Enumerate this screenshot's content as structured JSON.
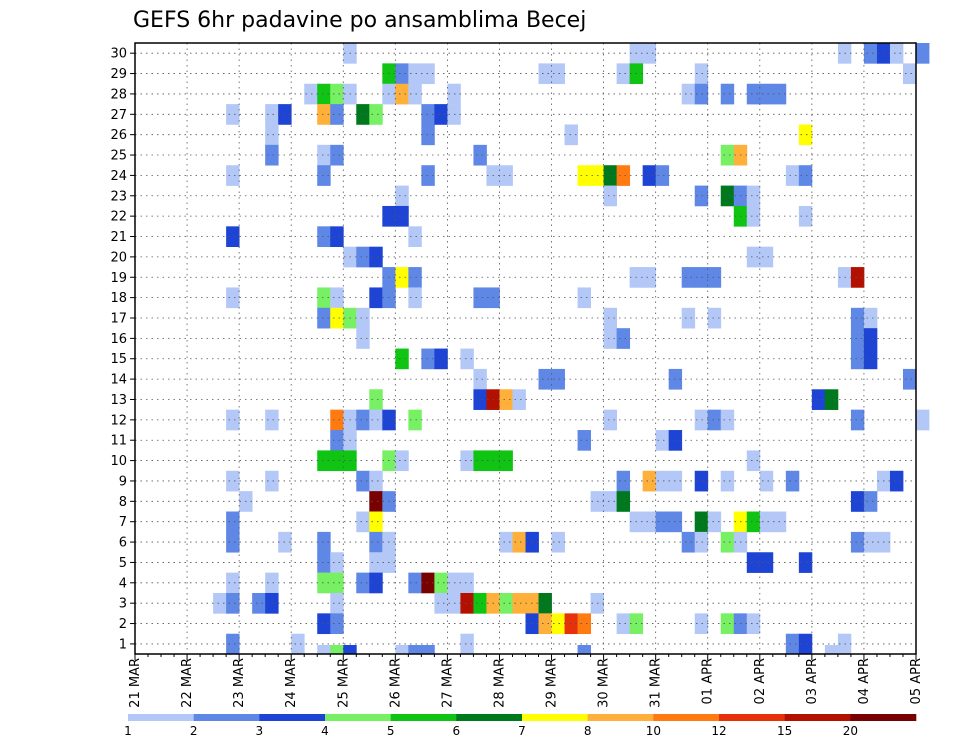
{
  "chart_data": {
    "type": "heatmap",
    "title": "GEFS 6hr padavine po ansamblima Becej",
    "y_categories": [
      "1",
      "2",
      "3",
      "4",
      "5",
      "6",
      "7",
      "8",
      "9",
      "10",
      "11",
      "12",
      "13",
      "14",
      "15",
      "16",
      "17",
      "18",
      "19",
      "20",
      "21",
      "22",
      "23",
      "24",
      "25",
      "26",
      "27",
      "28",
      "29",
      "30"
    ],
    "x_tick_labels": [
      "21 MAR",
      "22 MAR",
      "23 MAR",
      "24 MAR",
      "25 MAR",
      "26 MAR",
      "27 MAR",
      "28 MAR",
      "29 MAR",
      "30 MAR",
      "31 MAR",
      "01 APR",
      "02 APR",
      "03 APR",
      "04 APR",
      "05 APR"
    ],
    "x_steps_per_day": 4,
    "colorbar": {
      "tick_labels": [
        "1",
        "2",
        "3",
        "4",
        "5",
        "6",
        "7",
        "8",
        "10",
        "12",
        "15",
        "20"
      ],
      "bounds": [
        1,
        2,
        3,
        4,
        5,
        6,
        7,
        8,
        10,
        12,
        15,
        20,
        25
      ],
      "colors": [
        "#b4c8f8",
        "#5f87e6",
        "#1e44d6",
        "#78f064",
        "#10c414",
        "#00781e",
        "#ffff00",
        "#ffb03a",
        "#ff7a10",
        "#e6320a",
        "#b41000",
        "#780000"
      ]
    },
    "cells": [
      [
        30,
        16,
        1
      ],
      [
        30,
        38,
        1
      ],
      [
        30,
        39,
        1
      ],
      [
        30,
        54,
        1
      ],
      [
        30,
        56,
        2
      ],
      [
        30,
        57,
        3
      ],
      [
        30,
        58,
        1
      ],
      [
        30,
        60,
        2
      ],
      [
        29,
        19,
        5
      ],
      [
        29,
        20,
        2
      ],
      [
        29,
        21,
        1
      ],
      [
        29,
        22,
        1
      ],
      [
        29,
        31,
        1
      ],
      [
        29,
        32,
        1
      ],
      [
        29,
        37,
        1
      ],
      [
        29,
        38,
        5
      ],
      [
        29,
        43,
        1
      ],
      [
        29,
        59,
        1
      ],
      [
        28,
        13,
        1
      ],
      [
        28,
        14,
        5
      ],
      [
        28,
        15,
        4
      ],
      [
        28,
        16,
        1
      ],
      [
        28,
        19,
        1
      ],
      [
        28,
        20,
        8
      ],
      [
        28,
        21,
        1
      ],
      [
        28,
        24,
        1
      ],
      [
        28,
        42,
        1
      ],
      [
        28,
        43,
        2
      ],
      [
        28,
        45,
        2
      ],
      [
        28,
        47,
        2
      ],
      [
        28,
        48,
        2
      ],
      [
        28,
        49,
        2
      ],
      [
        27,
        7,
        1
      ],
      [
        27,
        10,
        1
      ],
      [
        27,
        11,
        3
      ],
      [
        27,
        14,
        8
      ],
      [
        27,
        15,
        2
      ],
      [
        27,
        17,
        6
      ],
      [
        27,
        18,
        4
      ],
      [
        27,
        22,
        2
      ],
      [
        27,
        23,
        3
      ],
      [
        27,
        24,
        1
      ],
      [
        26,
        10,
        1
      ],
      [
        26,
        22,
        2
      ],
      [
        26,
        33,
        1
      ],
      [
        26,
        51,
        7
      ],
      [
        25,
        10,
        2
      ],
      [
        25,
        14,
        1
      ],
      [
        25,
        15,
        2
      ],
      [
        25,
        26,
        2
      ],
      [
        25,
        45,
        4
      ],
      [
        25,
        46,
        8
      ],
      [
        24,
        7,
        1
      ],
      [
        24,
        14,
        2
      ],
      [
        24,
        22,
        2
      ],
      [
        24,
        27,
        1
      ],
      [
        24,
        28,
        1
      ],
      [
        24,
        34,
        7
      ],
      [
        24,
        35,
        7
      ],
      [
        24,
        36,
        6
      ],
      [
        24,
        37,
        9
      ],
      [
        24,
        39,
        3
      ],
      [
        24,
        40,
        2
      ],
      [
        24,
        50,
        1
      ],
      [
        24,
        51,
        2
      ],
      [
        23,
        20,
        1
      ],
      [
        23,
        36,
        1
      ],
      [
        23,
        43,
        2
      ],
      [
        23,
        45,
        6
      ],
      [
        23,
        46,
        2
      ],
      [
        23,
        47,
        1
      ],
      [
        22,
        19,
        3
      ],
      [
        22,
        20,
        3
      ],
      [
        22,
        46,
        5
      ],
      [
        22,
        47,
        1
      ],
      [
        22,
        51,
        1
      ],
      [
        21,
        7,
        3
      ],
      [
        21,
        14,
        2
      ],
      [
        21,
        15,
        3
      ],
      [
        21,
        21,
        1
      ],
      [
        20,
        16,
        1
      ],
      [
        20,
        17,
        2
      ],
      [
        20,
        18,
        3
      ],
      [
        20,
        47,
        1
      ],
      [
        20,
        48,
        1
      ],
      [
        19,
        19,
        2
      ],
      [
        19,
        20,
        7
      ],
      [
        19,
        21,
        2
      ],
      [
        19,
        38,
        1
      ],
      [
        19,
        39,
        1
      ],
      [
        19,
        42,
        2
      ],
      [
        19,
        43,
        2
      ],
      [
        19,
        44,
        2
      ],
      [
        19,
        54,
        1
      ],
      [
        19,
        55,
        11
      ],
      [
        18,
        7,
        1
      ],
      [
        18,
        14,
        4
      ],
      [
        18,
        15,
        1
      ],
      [
        18,
        18,
        3
      ],
      [
        18,
        19,
        2
      ],
      [
        18,
        21,
        1
      ],
      [
        18,
        26,
        2
      ],
      [
        18,
        27,
        2
      ],
      [
        18,
        34,
        1
      ],
      [
        17,
        14,
        2
      ],
      [
        17,
        15,
        7
      ],
      [
        17,
        16,
        4
      ],
      [
        17,
        17,
        1
      ],
      [
        17,
        36,
        1
      ],
      [
        17,
        42,
        1
      ],
      [
        17,
        44,
        1
      ],
      [
        17,
        55,
        2
      ],
      [
        17,
        56,
        1
      ],
      [
        16,
        17,
        1
      ],
      [
        16,
        36,
        1
      ],
      [
        16,
        37,
        2
      ],
      [
        16,
        55,
        2
      ],
      [
        16,
        56,
        3
      ],
      [
        15,
        20,
        5
      ],
      [
        15,
        22,
        2
      ],
      [
        15,
        23,
        3
      ],
      [
        15,
        25,
        1
      ],
      [
        15,
        55,
        2
      ],
      [
        15,
        56,
        3
      ],
      [
        14,
        26,
        1
      ],
      [
        14,
        31,
        2
      ],
      [
        14,
        32,
        2
      ],
      [
        14,
        41,
        2
      ],
      [
        14,
        59,
        2
      ],
      [
        13,
        18,
        4
      ],
      [
        13,
        26,
        3
      ],
      [
        13,
        27,
        11
      ],
      [
        13,
        28,
        8
      ],
      [
        13,
        29,
        1
      ],
      [
        13,
        52,
        3
      ],
      [
        13,
        53,
        6
      ],
      [
        12,
        7,
        1
      ],
      [
        12,
        10,
        1
      ],
      [
        12,
        15,
        9
      ],
      [
        12,
        16,
        1
      ],
      [
        12,
        17,
        2
      ],
      [
        12,
        18,
        1
      ],
      [
        12,
        19,
        3
      ],
      [
        12,
        21,
        4
      ],
      [
        12,
        36,
        1
      ],
      [
        12,
        43,
        1
      ],
      [
        12,
        44,
        2
      ],
      [
        12,
        45,
        1
      ],
      [
        12,
        55,
        2
      ],
      [
        12,
        60,
        1
      ],
      [
        11,
        15,
        2
      ],
      [
        11,
        16,
        1
      ],
      [
        11,
        34,
        2
      ],
      [
        11,
        40,
        1
      ],
      [
        11,
        41,
        3
      ],
      [
        10,
        14,
        5
      ],
      [
        10,
        15,
        5
      ],
      [
        10,
        16,
        5
      ],
      [
        10,
        19,
        4
      ],
      [
        10,
        20,
        1
      ],
      [
        10,
        25,
        1
      ],
      [
        10,
        26,
        5
      ],
      [
        10,
        27,
        5
      ],
      [
        10,
        28,
        5
      ],
      [
        10,
        47,
        1
      ],
      [
        9,
        7,
        1
      ],
      [
        9,
        10,
        1
      ],
      [
        9,
        17,
        2
      ],
      [
        9,
        18,
        1
      ],
      [
        9,
        37,
        2
      ],
      [
        9,
        39,
        8
      ],
      [
        9,
        40,
        1
      ],
      [
        9,
        41,
        1
      ],
      [
        9,
        43,
        3
      ],
      [
        9,
        45,
        1
      ],
      [
        9,
        48,
        1
      ],
      [
        9,
        50,
        2
      ],
      [
        9,
        57,
        1
      ],
      [
        9,
        58,
        3
      ],
      [
        8,
        8,
        1
      ],
      [
        8,
        18,
        12
      ],
      [
        8,
        19,
        2
      ],
      [
        8,
        35,
        1
      ],
      [
        8,
        36,
        1
      ],
      [
        8,
        37,
        6
      ],
      [
        8,
        55,
        3
      ],
      [
        8,
        56,
        2
      ],
      [
        7,
        7,
        2
      ],
      [
        7,
        17,
        1
      ],
      [
        7,
        18,
        7
      ],
      [
        7,
        38,
        1
      ],
      [
        7,
        39,
        1
      ],
      [
        7,
        40,
        2
      ],
      [
        7,
        41,
        2
      ],
      [
        7,
        43,
        6
      ],
      [
        7,
        44,
        1
      ],
      [
        7,
        46,
        7
      ],
      [
        7,
        47,
        5
      ],
      [
        7,
        48,
        1
      ],
      [
        7,
        49,
        1
      ],
      [
        6,
        7,
        2
      ],
      [
        6,
        11,
        1
      ],
      [
        6,
        14,
        2
      ],
      [
        6,
        18,
        2
      ],
      [
        6,
        19,
        1
      ],
      [
        6,
        28,
        1
      ],
      [
        6,
        29,
        8
      ],
      [
        6,
        30,
        3
      ],
      [
        6,
        32,
        1
      ],
      [
        6,
        42,
        2
      ],
      [
        6,
        43,
        1
      ],
      [
        6,
        45,
        4
      ],
      [
        6,
        46,
        1
      ],
      [
        6,
        55,
        2
      ],
      [
        6,
        56,
        1
      ],
      [
        6,
        57,
        1
      ],
      [
        5,
        14,
        2
      ],
      [
        5,
        15,
        1
      ],
      [
        5,
        18,
        1
      ],
      [
        5,
        19,
        1
      ],
      [
        5,
        47,
        3
      ],
      [
        5,
        48,
        3
      ],
      [
        5,
        51,
        3
      ],
      [
        4,
        7,
        1
      ],
      [
        4,
        10,
        1
      ],
      [
        4,
        14,
        4
      ],
      [
        4,
        15,
        4
      ],
      [
        4,
        17,
        2
      ],
      [
        4,
        18,
        3
      ],
      [
        4,
        21,
        2
      ],
      [
        4,
        22,
        12
      ],
      [
        4,
        23,
        4
      ],
      [
        4,
        24,
        1
      ],
      [
        4,
        25,
        1
      ],
      [
        3,
        6,
        1
      ],
      [
        3,
        7,
        2
      ],
      [
        3,
        9,
        2
      ],
      [
        3,
        10,
        3
      ],
      [
        3,
        15,
        1
      ],
      [
        3,
        23,
        1
      ],
      [
        3,
        24,
        1
      ],
      [
        3,
        25,
        11
      ],
      [
        3,
        26,
        5
      ],
      [
        3,
        27,
        8
      ],
      [
        3,
        28,
        4
      ],
      [
        3,
        29,
        8
      ],
      [
        3,
        30,
        8
      ],
      [
        3,
        31,
        6
      ],
      [
        3,
        35,
        1
      ],
      [
        2,
        14,
        3
      ],
      [
        2,
        15,
        2
      ],
      [
        2,
        30,
        3
      ],
      [
        2,
        31,
        8
      ],
      [
        2,
        32,
        7
      ],
      [
        2,
        33,
        10
      ],
      [
        2,
        34,
        9
      ],
      [
        2,
        37,
        1
      ],
      [
        2,
        38,
        4
      ],
      [
        2,
        43,
        1
      ],
      [
        2,
        45,
        4
      ],
      [
        2,
        46,
        2
      ],
      [
        2,
        47,
        1
      ],
      [
        1,
        7,
        2
      ],
      [
        1,
        12,
        1
      ],
      [
        1,
        25,
        1
      ],
      [
        1,
        50,
        2
      ],
      [
        1,
        51,
        3
      ],
      [
        1,
        54,
        1
      ],
      [
        0,
        14,
        1
      ],
      [
        0,
        15,
        4
      ],
      [
        0,
        16,
        3
      ],
      [
        0,
        20,
        1
      ],
      [
        0,
        21,
        2
      ],
      [
        0,
        22,
        2
      ],
      [
        0,
        34,
        2
      ],
      [
        0,
        53,
        1
      ]
    ]
  }
}
